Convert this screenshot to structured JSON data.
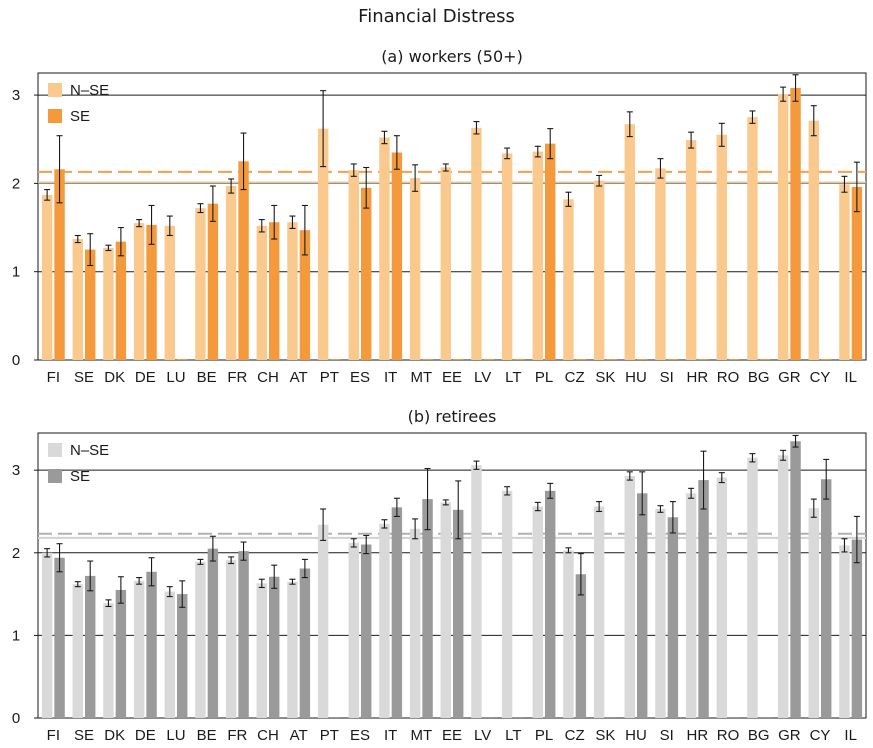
{
  "title": "Financial Distress",
  "colors": {
    "a_nse": "#f9c98d",
    "a_se": "#f49a3c",
    "a_mean_nse": "#e6c8a0",
    "a_mean_se": "#f0a050",
    "b_nse": "#d9d9d9",
    "b_se": "#9a9a9a",
    "b_mean_nse": "#d0d0d0",
    "b_mean_se": "#b0b0b0",
    "error": "#1a1a1a"
  },
  "chart_data": [
    {
      "type": "bar",
      "subtitle": "(a) workers (50+)",
      "categories": [
        "FI",
        "SE",
        "DK",
        "DE",
        "LU",
        "BE",
        "FR",
        "CH",
        "AT",
        "PT",
        "ES",
        "IT",
        "MT",
        "EE",
        "LV",
        "LT",
        "PL",
        "CZ",
        "SK",
        "HU",
        "SI",
        "HR",
        "RO",
        "BG",
        "GR",
        "CY",
        "IL"
      ],
      "ylim": [
        0,
        3.25
      ],
      "yticks": [
        "0",
        "1",
        "2",
        "3"
      ],
      "grid_y": [
        1,
        2,
        3
      ],
      "legend_position": "top-left",
      "series": [
        {
          "name": "N–SE",
          "values": [
            1.87,
            1.37,
            1.27,
            1.55,
            1.52,
            1.72,
            1.97,
            1.52,
            1.56,
            2.62,
            2.15,
            2.52,
            2.06,
            2.18,
            2.63,
            2.34,
            2.36,
            1.82,
            2.03,
            2.67,
            2.17,
            2.49,
            2.55,
            2.75,
            3.01,
            2.71,
            1.99
          ],
          "err": [
            0.06,
            0.04,
            0.03,
            0.04,
            0.11,
            0.05,
            0.08,
            0.07,
            0.07,
            0.43,
            0.07,
            0.07,
            0.15,
            0.04,
            0.07,
            0.06,
            0.06,
            0.08,
            0.06,
            0.14,
            0.11,
            0.09,
            0.13,
            0.07,
            0.08,
            0.17,
            0.09
          ]
        },
        {
          "name": "SE",
          "values": [
            2.16,
            1.25,
            1.34,
            1.53,
            null,
            1.77,
            2.25,
            1.56,
            1.47,
            null,
            1.95,
            2.35,
            null,
            null,
            null,
            null,
            2.45,
            null,
            null,
            null,
            null,
            null,
            null,
            null,
            3.08,
            null,
            1.96
          ],
          "err": [
            0.38,
            0.18,
            0.16,
            0.22,
            null,
            0.2,
            0.32,
            0.19,
            0.28,
            null,
            0.23,
            0.19,
            null,
            null,
            null,
            null,
            0.17,
            null,
            null,
            null,
            null,
            null,
            null,
            null,
            0.15,
            null,
            0.28
          ]
        }
      ],
      "reference_lines": [
        {
          "series": "N–SE",
          "value": 2.01
        },
        {
          "series": "SE",
          "value": 2.13
        }
      ]
    },
    {
      "type": "bar",
      "subtitle": "(b) retirees",
      "categories": [
        "FI",
        "SE",
        "DK",
        "DE",
        "LU",
        "BE",
        "FR",
        "CH",
        "AT",
        "PT",
        "ES",
        "IT",
        "MT",
        "EE",
        "LV",
        "LT",
        "PL",
        "CZ",
        "SK",
        "HU",
        "SI",
        "HR",
        "RO",
        "BG",
        "GR",
        "CY",
        "IL"
      ],
      "ylim": [
        0,
        3.45
      ],
      "yticks": [
        "0",
        "1",
        "2",
        "3"
      ],
      "grid_y": [
        1,
        2,
        3
      ],
      "legend_position": "top-left",
      "series": [
        {
          "name": "N–SE",
          "values": [
            2.0,
            1.62,
            1.39,
            1.66,
            1.53,
            1.89,
            1.91,
            1.63,
            1.65,
            2.34,
            2.12,
            2.35,
            2.29,
            2.61,
            3.06,
            2.75,
            2.56,
            2.03,
            2.56,
            2.93,
            2.53,
            2.72,
            2.91,
            3.15,
            3.18,
            2.54,
            2.09
          ],
          "err": [
            0.05,
            0.03,
            0.04,
            0.04,
            0.06,
            0.03,
            0.04,
            0.05,
            0.03,
            0.19,
            0.05,
            0.05,
            0.12,
            0.03,
            0.05,
            0.05,
            0.05,
            0.03,
            0.06,
            0.05,
            0.04,
            0.06,
            0.06,
            0.05,
            0.06,
            0.11,
            0.08
          ]
        },
        {
          "name": "SE",
          "values": [
            1.94,
            1.72,
            1.55,
            1.77,
            1.5,
            2.05,
            2.02,
            1.71,
            1.81,
            null,
            2.1,
            2.55,
            2.65,
            2.52,
            null,
            null,
            2.75,
            1.74,
            null,
            2.72,
            2.43,
            2.88,
            null,
            null,
            3.35,
            2.89,
            2.16
          ],
          "err": [
            0.17,
            0.18,
            0.16,
            0.17,
            0.16,
            0.15,
            0.11,
            0.14,
            0.11,
            null,
            0.11,
            0.11,
            0.37,
            0.35,
            null,
            null,
            0.09,
            0.25,
            null,
            0.26,
            0.19,
            0.35,
            null,
            null,
            0.07,
            0.24,
            0.28
          ]
        }
      ],
      "reference_lines": [
        {
          "series": "N–SE",
          "value": 2.18
        },
        {
          "series": "SE",
          "value": 2.23
        }
      ]
    }
  ]
}
